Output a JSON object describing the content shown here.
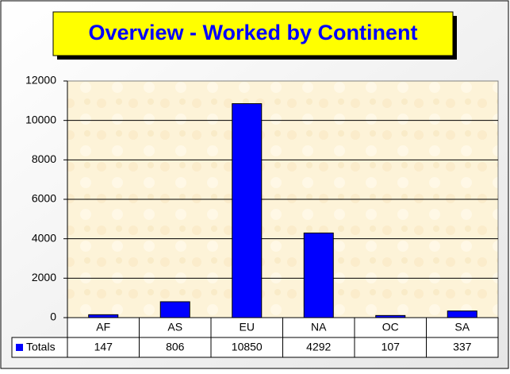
{
  "chart_data": {
    "type": "bar",
    "title": "Overview - Worked by Continent",
    "categories": [
      "AF",
      "AS",
      "EU",
      "NA",
      "OC",
      "SA"
    ],
    "series": [
      {
        "name": "Totals",
        "color": "#0000ff",
        "values": [
          147,
          806,
          10850,
          4292,
          107,
          337
        ]
      }
    ],
    "ylim": [
      0,
      12000
    ],
    "yticks": [
      0,
      2000,
      4000,
      6000,
      8000,
      10000,
      12000
    ],
    "grid": true,
    "legend": "data-table"
  }
}
